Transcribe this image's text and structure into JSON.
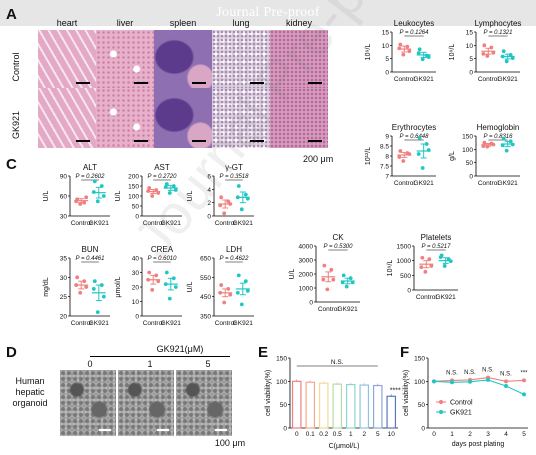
{
  "banner": "Journal Pre-proof",
  "watermark": "Journal Pre-proof",
  "panels": {
    "A": "A",
    "C": "C",
    "D": "D",
    "E": "E",
    "F": "F"
  },
  "histology": {
    "tissues": [
      "heart",
      "liver",
      "spleen",
      "lung",
      "kidney"
    ],
    "rows": [
      "Control",
      "GK921"
    ],
    "scale_bar": "200 μm",
    "colors": {
      "heart": "#e4a9c7",
      "liver": "#e8b0cc",
      "spleen": "#8e6fb1",
      "lung": "#ddd3df",
      "kidney": "#d99bbf"
    }
  },
  "colors": {
    "control": "#f08080",
    "gk921": "#20c7c2"
  },
  "blood": [
    {
      "title": "Leukocytes",
      "unit": "10⁹/L",
      "p": "P = 0.1264",
      "ylim": [
        0,
        15
      ],
      "ticks": [
        0,
        5,
        10,
        15
      ],
      "control": {
        "mean": 8.6,
        "sem": 1.1,
        "points": [
          10.3,
          9.5,
          6.5,
          7.8,
          8.9
        ]
      },
      "gk921": {
        "mean": 6.4,
        "sem": 1.0,
        "points": [
          8.5,
          6.2,
          4.8,
          5.6,
          7.1
        ]
      }
    },
    {
      "title": "Lymphocytes",
      "unit": "10⁹/L",
      "p": "P = 0.1321",
      "ylim": [
        0,
        15
      ],
      "ticks": [
        0,
        5,
        10,
        15
      ],
      "control": {
        "mean": 7.8,
        "sem": 1.1,
        "points": [
          10.0,
          9.2,
          6.0,
          7.2,
          6.8
        ]
      },
      "gk921": {
        "mean": 5.8,
        "sem": 0.9,
        "points": [
          7.8,
          6.4,
          4.0,
          5.2,
          5.8
        ]
      }
    },
    {
      "title": "Erythrocytes",
      "unit": "10¹²/L",
      "p": "P = 0.6448",
      "ylim": [
        7.0,
        9.0
      ],
      "ticks": [
        7.0,
        7.5,
        8.0,
        8.5,
        9.0
      ],
      "control": {
        "mean": 8.05,
        "sem": 0.12,
        "points": [
          8.25,
          8.15,
          7.75,
          8.1,
          7.95
        ]
      },
      "gk921": {
        "mean": 8.25,
        "sem": 0.35,
        "points": [
          8.9,
          8.6,
          7.4,
          8.3,
          8.1
        ]
      }
    },
    {
      "title": "Hemoglobin",
      "unit": "g/L",
      "p": "P = 0.8316",
      "ylim": [
        0,
        150
      ],
      "ticks": [
        0,
        50,
        100,
        150
      ],
      "control": {
        "mean": 117,
        "sem": 5,
        "points": [
          125,
          122,
          110,
          118,
          112
        ]
      },
      "gk921": {
        "mean": 120,
        "sem": 10,
        "points": [
          140,
          130,
          95,
          118,
          115
        ]
      }
    },
    {
      "title": "Platelets",
      "unit": "10⁹/L",
      "p": "P = 0.5217",
      "ylim": [
        0,
        1500
      ],
      "ticks": [
        0,
        500,
        1000,
        1500
      ],
      "control": {
        "mean": 880,
        "sem": 120,
        "points": [
          1100,
          1050,
          620,
          820,
          780
        ]
      },
      "gk921": {
        "mean": 1000,
        "sem": 100,
        "points": [
          1180,
          1050,
          820,
          980,
          1120
        ]
      }
    }
  ],
  "biochem": [
    {
      "title": "ALT",
      "unit": "U/L",
      "p": "P = 0.2602",
      "ylim": [
        30,
        90
      ],
      "ticks": [
        30,
        60,
        90
      ],
      "control": {
        "mean": 53,
        "sem": 3,
        "points": [
          55,
          50,
          48,
          58,
          52
        ]
      },
      "gk921": {
        "mean": 65,
        "sem": 8,
        "points": [
          82,
          75,
          52,
          60,
          66
        ]
      }
    },
    {
      "title": "AST",
      "unit": "U/L",
      "p": "P = 0.2720",
      "ylim": [
        0,
        200
      ],
      "ticks": [
        0,
        50,
        100,
        150,
        200
      ],
      "control": {
        "mean": 122,
        "sem": 10,
        "points": [
          140,
          130,
          100,
          115,
          125
        ]
      },
      "gk921": {
        "mean": 140,
        "sem": 12,
        "points": [
          160,
          150,
          115,
          130,
          145
        ]
      }
    },
    {
      "title": "γ-GT",
      "unit": "U/L",
      "p": "P = 0.3518",
      "ylim": [
        0,
        6
      ],
      "ticks": [
        0,
        2,
        4,
        6
      ],
      "control": {
        "mean": 1.8,
        "sem": 0.6,
        "points": [
          2.8,
          2.2,
          0.4,
          1.8,
          1.6
        ]
      },
      "gk921": {
        "mean": 2.8,
        "sem": 0.8,
        "points": [
          4.5,
          3.2,
          1.0,
          2.6,
          2.8
        ]
      }
    },
    {
      "title": "BUN",
      "unit": "mg/dL",
      "p": "P = 0.4461",
      "ylim": [
        20,
        35
      ],
      "ticks": [
        20,
        25,
        30,
        35
      ],
      "control": {
        "mean": 28,
        "sem": 1,
        "points": [
          30,
          29,
          26,
          27.5,
          28
        ]
      },
      "gk921": {
        "mean": 26,
        "sem": 2,
        "points": [
          29,
          28,
          21,
          25,
          27
        ]
      }
    },
    {
      "title": "CREA",
      "unit": "μmol/L",
      "p": "P = 0.6010",
      "ylim": [
        0,
        40
      ],
      "ticks": [
        0,
        10,
        20,
        30,
        40
      ],
      "control": {
        "mean": 25,
        "sem": 3,
        "points": [
          30,
          28,
          18,
          24,
          25
        ]
      },
      "gk921": {
        "mean": 22,
        "sem": 4,
        "points": [
          30,
          26,
          12,
          20,
          22
        ]
      }
    },
    {
      "title": "LDH",
      "unit": "U/L",
      "p": "P = 0.4622",
      "ylim": [
        350,
        650
      ],
      "ticks": [
        350,
        450,
        550,
        650
      ],
      "control": {
        "mean": 470,
        "sem": 20,
        "points": [
          510,
          490,
          420,
          460,
          470
        ]
      },
      "gk921": {
        "mean": 490,
        "sem": 30,
        "points": [
          560,
          530,
          410,
          480,
          470
        ]
      }
    },
    {
      "title": "CK",
      "unit": "U/L",
      "p": "P = 0.5300",
      "ylim": [
        0,
        4000
      ],
      "ticks": [
        0,
        1000,
        2000,
        3000,
        4000
      ],
      "control": {
        "mean": 1800,
        "sem": 350,
        "points": [
          2600,
          2300,
          900,
          1600,
          1600
        ]
      },
      "gk921": {
        "mean": 1500,
        "sem": 200,
        "points": [
          1900,
          1700,
          1100,
          1400,
          1400
        ]
      }
    }
  ],
  "xcats": [
    "Control",
    "GK921"
  ],
  "organoid": {
    "label": "Human hepatic organoid",
    "treatment": "GK921(μM)",
    "doses": [
      "0",
      "1",
      "5"
    ],
    "scale_bar": "100 μm"
  },
  "chart_data": [
    {
      "type": "bar",
      "title": "",
      "ylabel": "cell viability(%)",
      "xlabel": "C(μmol/L)",
      "categories": [
        "0",
        "0.1",
        "0.2",
        "0.5",
        "1",
        "2",
        "5",
        "10"
      ],
      "values": [
        100,
        98,
        96,
        94,
        93,
        92,
        91,
        68
      ],
      "ylim": [
        0,
        150
      ],
      "yticks": [
        0,
        50,
        100,
        150
      ],
      "significance": "N.S.",
      "significance_last": "****",
      "colors": [
        "#f08080",
        "#f4a88a",
        "#f3d89a",
        "#b7dba5",
        "#8fd4c8",
        "#90c3e2",
        "#8fa6d8",
        "#5b75c2"
      ]
    },
    {
      "type": "line",
      "title": "",
      "ylabel": "cell viability(%)",
      "xlabel": "days post plating",
      "x": [
        0,
        1,
        2,
        3,
        4,
        5
      ],
      "ylim": [
        0,
        150
      ],
      "yticks": [
        0,
        50,
        100,
        150
      ],
      "series": [
        {
          "name": "Control",
          "values": [
            100,
            102,
            103,
            108,
            100,
            102
          ],
          "color": "#f08080"
        },
        {
          "name": "GK921",
          "values": [
            100,
            98,
            99,
            103,
            90,
            72
          ],
          "color": "#20c7c2"
        }
      ],
      "annotations": [
        "N.S.",
        "N.S.",
        "N.S.",
        "N.S.",
        "***"
      ]
    }
  ]
}
